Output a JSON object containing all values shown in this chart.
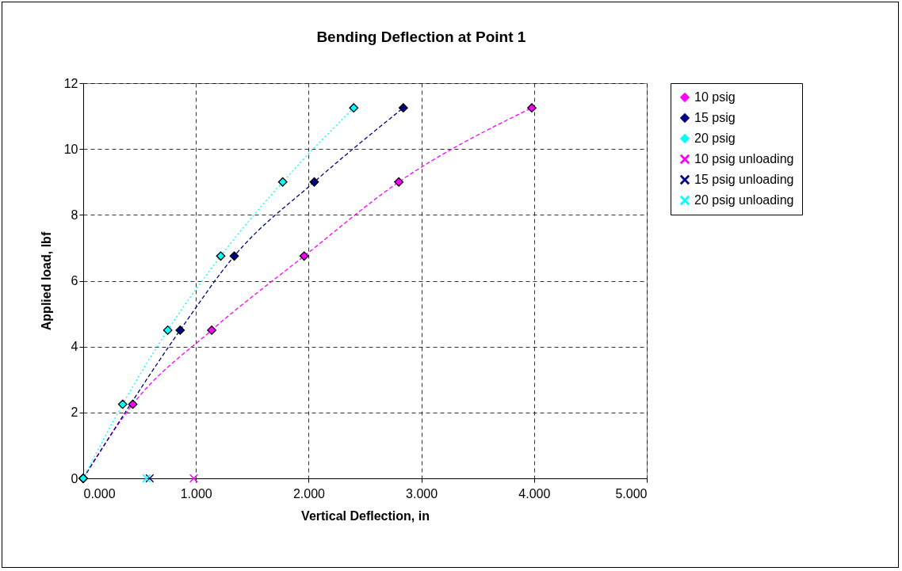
{
  "chart_data": {
    "type": "line",
    "title": "Bending Deflection at Point 1",
    "xlabel": "Vertical Deflection, in",
    "ylabel": "Applied load, lbf",
    "xlim": [
      0,
      5
    ],
    "xticks": [
      {
        "value": 0,
        "label": "0.000"
      },
      {
        "value": 1,
        "label": "1.000"
      },
      {
        "value": 2,
        "label": "2.000"
      },
      {
        "value": 3,
        "label": "3.000"
      },
      {
        "value": 4,
        "label": "4.000"
      },
      {
        "value": 5,
        "label": "5.000"
      }
    ],
    "ylim": [
      0,
      12
    ],
    "yticks": [
      0,
      2,
      4,
      6,
      8,
      10,
      12
    ],
    "grid": true,
    "legend": "right",
    "series": [
      {
        "name": "10 psig",
        "type": "line",
        "color": "#ff00ff",
        "marker": "diamond",
        "line_style": "dashed",
        "x": [
          0,
          0.44,
          1.14,
          1.96,
          2.8,
          3.98
        ],
        "values": [
          0,
          2.25,
          4.5,
          6.75,
          9,
          11.25
        ]
      },
      {
        "name": "15 psig",
        "type": "line",
        "color": "#000080",
        "marker": "diamond",
        "line_style": "dashed",
        "x": [
          0,
          null,
          0.86,
          1.34,
          2.05,
          2.84
        ],
        "values": [
          0,
          null,
          4.5,
          6.75,
          9,
          11.25
        ]
      },
      {
        "name": "20 psig",
        "type": "line",
        "color": "#00ffff",
        "marker": "diamond",
        "line_style": "dotted",
        "x": [
          0,
          0.35,
          0.75,
          1.22,
          1.77,
          2.4
        ],
        "values": [
          0,
          2.25,
          4.5,
          6.75,
          9,
          11.25
        ]
      },
      {
        "name": "10 psig unloading",
        "type": "scatter",
        "color": "#ff00ff",
        "marker": "cross",
        "x": [
          0.98
        ],
        "values": [
          0
        ]
      },
      {
        "name": "15 psig unloading",
        "type": "scatter",
        "color": "#000080",
        "marker": "cross",
        "x": [
          0.59
        ],
        "values": [
          0
        ]
      },
      {
        "name": "20 psig unloading",
        "type": "scatter",
        "color": "#00ffff",
        "marker": "cross",
        "x": [
          0.56
        ],
        "values": [
          0
        ]
      }
    ]
  }
}
